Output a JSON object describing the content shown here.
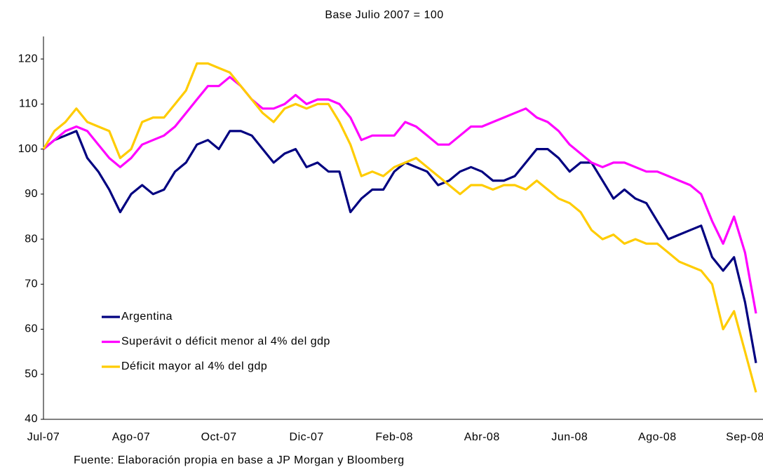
{
  "chart_data": {
    "type": "line",
    "title": "Base Julio 2007 = 100",
    "source": "Fuente: Elaboración propia en base a JP Morgan y Bloomberg",
    "categories": [
      "Jul-07",
      null,
      null,
      null,
      null,
      null,
      null,
      null,
      "Ago-07",
      null,
      null,
      null,
      null,
      null,
      null,
      null,
      "Oct-07",
      null,
      null,
      null,
      null,
      null,
      null,
      null,
      "Dic-07",
      null,
      null,
      null,
      null,
      null,
      null,
      null,
      "Feb-08",
      null,
      null,
      null,
      null,
      null,
      null,
      null,
      "Abr-08",
      null,
      null,
      null,
      null,
      null,
      null,
      null,
      "Jun-08",
      null,
      null,
      null,
      null,
      null,
      null,
      null,
      "Ago-08",
      null,
      null,
      null,
      null,
      null,
      null,
      null,
      "Sep-08",
      null
    ],
    "series": [
      {
        "name": "Argentina",
        "color": "#000080",
        "values": [
          100,
          102,
          103,
          104,
          98,
          95,
          91,
          86,
          90,
          92,
          90,
          91,
          95,
          97,
          101,
          102,
          100,
          104,
          104,
          103,
          100,
          97,
          99,
          100,
          96,
          97,
          95,
          95,
          86,
          89,
          91,
          91,
          95,
          97,
          96,
          95,
          92,
          93,
          95,
          96,
          95,
          93,
          93,
          94,
          97,
          100,
          100,
          98,
          95,
          97,
          97,
          93,
          89,
          91,
          89,
          88,
          84,
          80,
          81,
          82,
          83,
          76,
          73,
          76,
          66,
          52.5
        ]
      },
      {
        "name": "Superávit o déficit menor al 4% del gdp",
        "color": "#ff00ff",
        "values": [
          100,
          102,
          104,
          105,
          104,
          101,
          98,
          96,
          98,
          101,
          102,
          103,
          105,
          108,
          111,
          114,
          114,
          116,
          114,
          111,
          109,
          109,
          110,
          112,
          110,
          111,
          111,
          110,
          107,
          102,
          103,
          103,
          103,
          106,
          105,
          103,
          101,
          101,
          103,
          105,
          105,
          106,
          107,
          108,
          109,
          107,
          106,
          104,
          101,
          99,
          97,
          96,
          97,
          97,
          96,
          95,
          95,
          94,
          93,
          92,
          90,
          84,
          79,
          85,
          77,
          63.5
        ]
      },
      {
        "name": "Déficit mayor al 4% del gdp",
        "color": "#ffcc00",
        "values": [
          100,
          104,
          106,
          109,
          106,
          105,
          104,
          98,
          100,
          106,
          107,
          107,
          110,
          113,
          119,
          119,
          118,
          117,
          114,
          111,
          108,
          106,
          109,
          110,
          109,
          110,
          110,
          106,
          101,
          94,
          95,
          94,
          96,
          97,
          98,
          96,
          94,
          92,
          90,
          92,
          92,
          91,
          92,
          92,
          91,
          93,
          91,
          89,
          88,
          86,
          82,
          80,
          81,
          79,
          80,
          79,
          79,
          77,
          75,
          74,
          73,
          70,
          60,
          64,
          55,
          46
        ]
      }
    ],
    "ylim": [
      40,
      125
    ],
    "yticks": [
      40,
      50,
      60,
      70,
      80,
      90,
      100,
      110,
      120
    ],
    "grid": false,
    "legend": "lower-left"
  }
}
